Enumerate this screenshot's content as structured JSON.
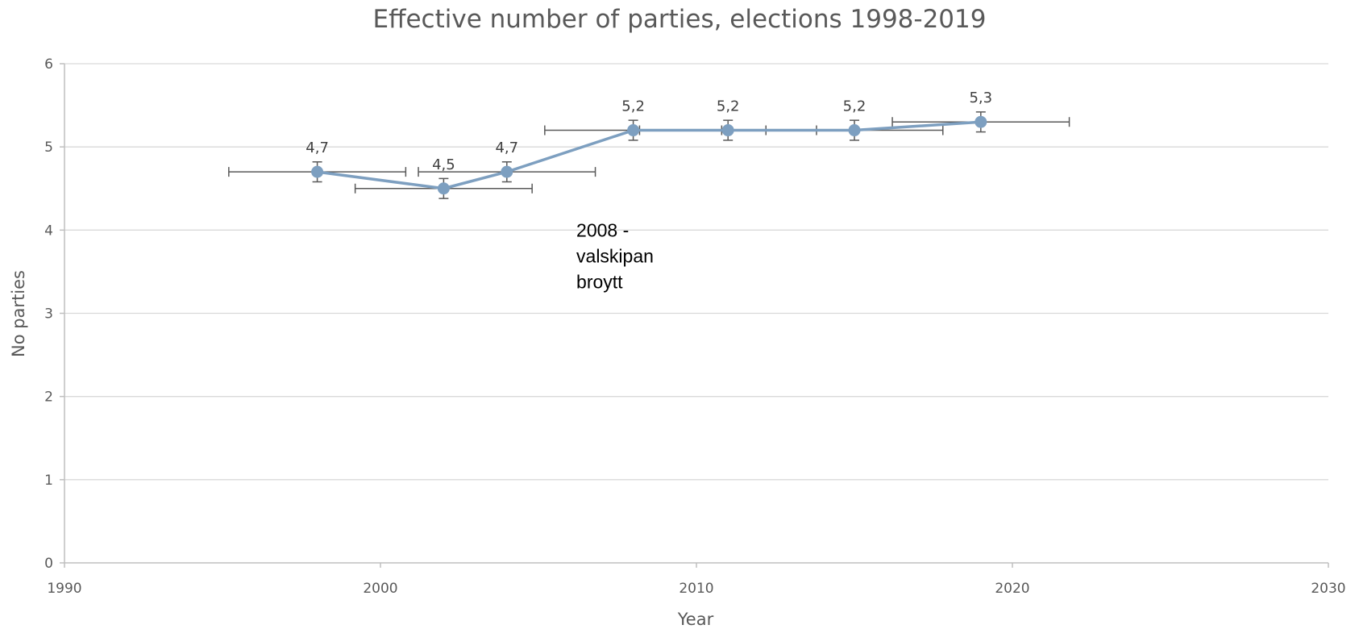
{
  "chart_data": {
    "type": "scatter",
    "title": "Effective number of parties, elections 1998-2019",
    "xlabel": "Year",
    "ylabel": "No parties",
    "xlim": [
      1990,
      2030
    ],
    "ylim": [
      0,
      6
    ],
    "x_ticks": [
      "1990",
      "2000",
      "2010",
      "2020",
      "2030"
    ],
    "y_ticks": [
      "0",
      "1",
      "2",
      "3",
      "4",
      "5",
      "6"
    ],
    "grid": true,
    "legend": "none",
    "series": [
      {
        "color": "#7d9fc0",
        "x": [
          1998,
          2002,
          2004,
          2008,
          2011,
          2015,
          2019
        ],
        "y": [
          4.7,
          4.5,
          4.7,
          5.2,
          5.2,
          5.2,
          5.3
        ],
        "data_labels": [
          "4,7",
          "4,5",
          "4,7",
          "5,2",
          "5,2",
          "5,2",
          "5,3"
        ],
        "x_error": 2.8,
        "y_error": 0.12
      }
    ],
    "annotation": {
      "lines": [
        "2008 -",
        "valskipan",
        "broytt"
      ],
      "x": 2006.2,
      "y": 4.0
    }
  }
}
